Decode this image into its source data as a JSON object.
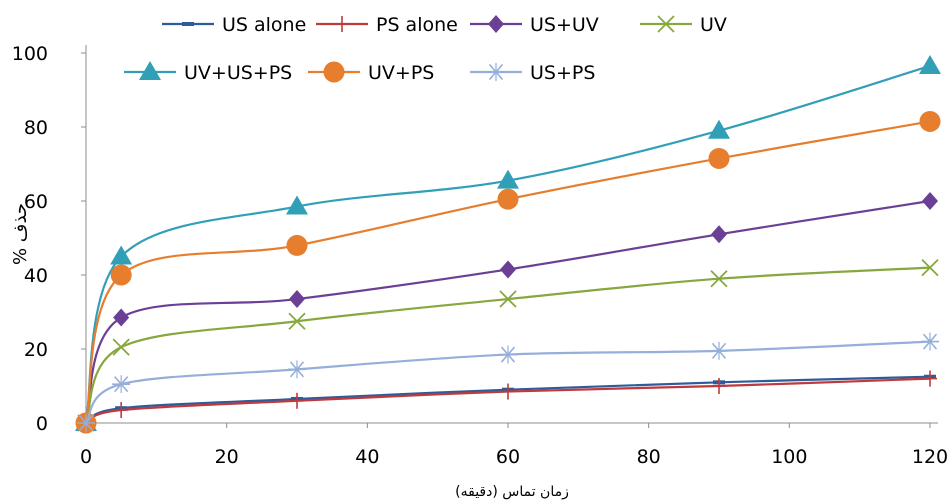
{
  "chart_data": {
    "type": "line",
    "title": "",
    "xlabel": "زمان تماس (دقیقه)",
    "ylabel": "% حذف",
    "xlim": [
      0,
      120
    ],
    "ylim": [
      0,
      100
    ],
    "xticks": [
      0,
      20,
      40,
      60,
      80,
      100,
      120
    ],
    "yticks": [
      0,
      20,
      40,
      60,
      80,
      100
    ],
    "grid": false,
    "legend_position": "top",
    "x": [
      0,
      5,
      30,
      60,
      90,
      120
    ],
    "series": [
      {
        "name": "US alone",
        "color": "#2E5C9A",
        "marker": "dash",
        "values": [
          0,
          4,
          6.5,
          9,
          11,
          12.5
        ]
      },
      {
        "name": "PS alone",
        "color": "#C0393B",
        "marker": "plus",
        "values": [
          0,
          3.5,
          6,
          8.5,
          10,
          12
        ]
      },
      {
        "name": "US+UV",
        "color": "#6B3F96",
        "marker": "diamond",
        "values": [
          0,
          28.5,
          33.5,
          41.5,
          51,
          60
        ]
      },
      {
        "name": "UV",
        "color": "#86A83E",
        "marker": "x",
        "values": [
          0,
          20.5,
          27.5,
          33.5,
          39,
          42
        ]
      },
      {
        "name": "UV+US+PS",
        "color": "#31A0B7",
        "marker": "triangle",
        "values": [
          0,
          45,
          58.5,
          65.5,
          79,
          96.5
        ]
      },
      {
        "name": "UV+PS",
        "color": "#E67E2E",
        "marker": "circle",
        "values": [
          0,
          40,
          48,
          60.5,
          71.5,
          81.5
        ]
      },
      {
        "name": "US+PS",
        "color": "#95AFDA",
        "marker": "asterisk",
        "values": [
          0,
          10.5,
          14.5,
          18.5,
          19.5,
          22
        ]
      }
    ]
  }
}
